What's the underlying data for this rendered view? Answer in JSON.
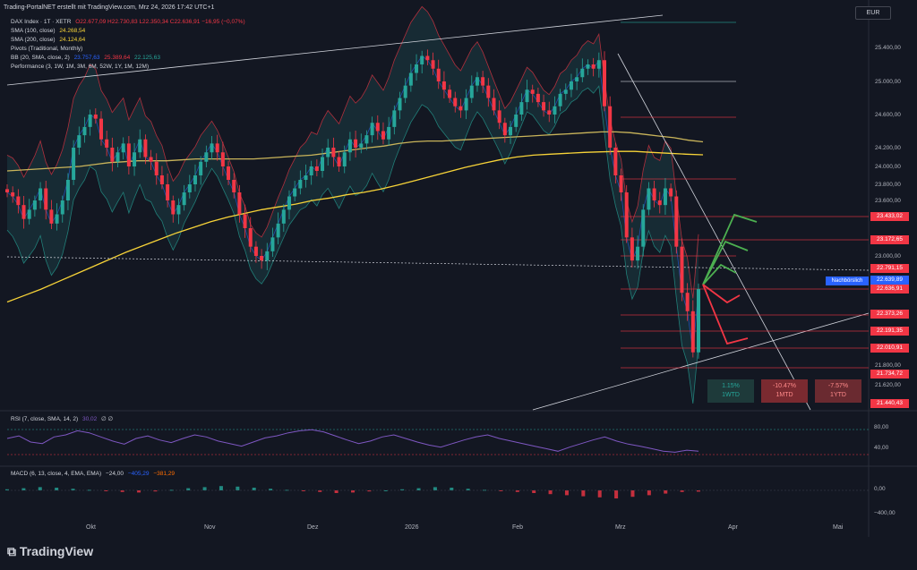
{
  "header": {
    "author_line": "Trading-PortalNET erstellt mit TradingView.com, Mrz 24, 2026 17:42 UTC+1"
  },
  "currency": "EUR",
  "legend": {
    "symbol": "DAX Index · 1T · XETR",
    "ohlc": "O22.677,09  H22.730,83  L22.350,34  C22.636,91  −16,95 (−0,07%)",
    "sma100_label": "SMA (100, close)",
    "sma100_value": "24.268,54",
    "sma200_label": "SMA (200, close)",
    "sma200_value": "24.124,64",
    "pivots_label": "Pivots (Traditional, Monthly)",
    "bb_label": "BB (20, SMA, close, 2)",
    "bb_basis": "23.757,63",
    "bb_upper": "25.389,64",
    "bb_lower": "22.125,63",
    "perf_label": "Performance (3, 1W, 1M, 3M, 6M, 52W, 1Y, 1M, 12M)"
  },
  "price_labels": [
    {
      "text": "23.433,02",
      "value": 23433.02,
      "color": "#f23645"
    },
    {
      "text": "23.172,65",
      "value": 23172.65,
      "color": "#f23645"
    },
    {
      "text": "22.791,15",
      "value": 22791.15,
      "color": "#f23645"
    },
    {
      "text": "22.639,89",
      "value": 22639.89,
      "color": "#2962ff"
    },
    {
      "text": "22.636,91",
      "value": 22636.91,
      "color": "#f23645"
    },
    {
      "text": "22.373,26",
      "value": 22373.26,
      "color": "#f23645"
    },
    {
      "text": "22.191,35",
      "value": 22191.35,
      "color": "#f23645"
    },
    {
      "text": "22.010,91",
      "value": 22010.91,
      "color": "#f23645"
    },
    {
      "text": "21.734,72",
      "value": 21734.72,
      "color": "#f23645"
    },
    {
      "text": "21.440,43",
      "value": 21440.43,
      "color": "#f23645"
    }
  ],
  "after_hours_label": "Nachbörslich",
  "performance_boxes": [
    {
      "value": "1.15%",
      "period": "1WTD",
      "color": "#26a69a"
    },
    {
      "value": "-10.47%",
      "period": "1MTD",
      "color": "#f23645"
    },
    {
      "value": "-7.57%",
      "period": "1YTD",
      "color": "#f23645"
    }
  ],
  "rsi": {
    "label": "RSI (7, close, SMA, 14, 2)",
    "value": "30,02",
    "extra": "∅ ∅",
    "ticks": [
      "80,00",
      "40,00"
    ]
  },
  "macd": {
    "label": "MACD (6, 13, close, 4, EMA, EMA)",
    "hist": "−24,00",
    "macd": "−405,29",
    "signal": "−381,29",
    "ticks": [
      "0,00",
      "−400,00"
    ]
  },
  "months": [
    "Okt",
    "Nov",
    "Dez",
    "2026",
    "Feb",
    "Mrz",
    "Apr",
    "Mai"
  ],
  "brand": "TradingView",
  "chart_data": {
    "type": "candlestick",
    "title": "DAX Index · 1T · XETR",
    "ylim": [
      21440,
      25700
    ],
    "y_ticks": [
      "25.400,00",
      "25.000,00",
      "24.600,00",
      "24.200,00",
      "24.000,00",
      "23.800,00",
      "23.600,00",
      "23.000,00",
      "21.800,00",
      "21.620,00"
    ],
    "y_tick_values": [
      25400,
      25000,
      24600,
      24200,
      24000,
      23800,
      23600,
      23000,
      21800,
      21620
    ],
    "x_categories": [
      "Okt",
      "Nov",
      "Dez",
      "2026",
      "Feb",
      "Mrz",
      "Apr",
      "Mai"
    ],
    "closes": [
      23700,
      23650,
      23550,
      23400,
      23500,
      23600,
      23750,
      23500,
      23350,
      23450,
      23600,
      23850,
      24200,
      24350,
      24450,
      24600,
      24550,
      24300,
      24200,
      24050,
      24150,
      24250,
      24000,
      24150,
      24300,
      24100,
      24050,
      23900,
      23800,
      23600,
      23450,
      23550,
      23700,
      23800,
      23900,
      24050,
      24150,
      24250,
      24150,
      24000,
      23850,
      23700,
      23450,
      23300,
      23100,
      23000,
      22950,
      23050,
      23200,
      23350,
      23500,
      23650,
      23750,
      23850,
      23900,
      24000,
      23950,
      24100,
      24200,
      24100,
      24000,
      24150,
      24300,
      24200,
      24250,
      24350,
      24500,
      24400,
      24300,
      24450,
      24650,
      24800,
      24950,
      25100,
      25200,
      25300,
      25250,
      25150,
      25000,
      24900,
      24800,
      24700,
      24650,
      24800,
      24950,
      25050,
      24950,
      24800,
      24650,
      24500,
      24350,
      24450,
      24600,
      24750,
      24900,
      24850,
      24750,
      24650,
      24600,
      24700,
      24850,
      24900,
      25000,
      25050,
      25150,
      25200,
      25150,
      25250,
      24700,
      24200,
      23900,
      23700,
      23200,
      22950,
      23100,
      23500,
      23750,
      23600,
      23550,
      23750,
      23650,
      23100,
      22600,
      22400,
      21950,
      22640
    ],
    "sma100": [
      23950,
      23960,
      23970,
      23980,
      23990,
      24000,
      24020,
      24040,
      24050,
      24060,
      24060,
      24060,
      24070,
      24080,
      24080,
      24080,
      24080,
      24080,
      24090,
      24100,
      24110,
      24120,
      24140,
      24160,
      24180,
      24200,
      24220,
      24250,
      24270,
      24280,
      24280,
      24290,
      24300,
      24310,
      24320,
      24330,
      24340,
      24350,
      24360,
      24370,
      24380,
      24390,
      24390,
      24380,
      24360,
      24340,
      24320,
      24290,
      24270
    ],
    "sma200": [
      22500,
      22570,
      22640,
      22720,
      22800,
      22880,
      22960,
      23040,
      23110,
      23180,
      23250,
      23310,
      23370,
      23420,
      23460,
      23500,
      23530,
      23560,
      23600,
      23630,
      23670,
      23700,
      23740,
      23790,
      23840,
      23890,
      23940,
      23990,
      24030,
      24070,
      24100,
      24120,
      24130,
      24140,
      24150,
      24155,
      24160,
      24160,
      24150,
      24140,
      24130,
      24124
    ],
    "rsi_values": [
      55,
      60,
      48,
      45,
      58,
      62,
      70,
      66,
      58,
      50,
      44,
      55,
      60,
      52,
      47,
      55,
      62,
      58,
      50,
      45,
      40,
      48,
      56,
      60,
      66,
      70,
      72,
      68,
      60,
      52,
      45,
      50,
      58,
      62,
      55,
      48,
      42,
      38,
      45,
      52,
      58,
      62,
      55,
      50,
      45,
      40,
      35,
      30,
      38,
      45,
      52,
      58,
      50,
      44,
      40,
      35,
      30,
      28,
      32,
      30
    ],
    "macd_hist": [
      20,
      40,
      60,
      50,
      30,
      10,
      -10,
      -30,
      -40,
      -20,
      10,
      40,
      60,
      80,
      70,
      50,
      30,
      10,
      -10,
      -30,
      -50,
      -40,
      -20,
      0,
      20,
      40,
      60,
      50,
      30,
      10,
      -10,
      -30,
      -50,
      -70,
      -90,
      -110,
      -130,
      -150,
      -120,
      -90,
      -60,
      -30,
      -24
    ]
  }
}
